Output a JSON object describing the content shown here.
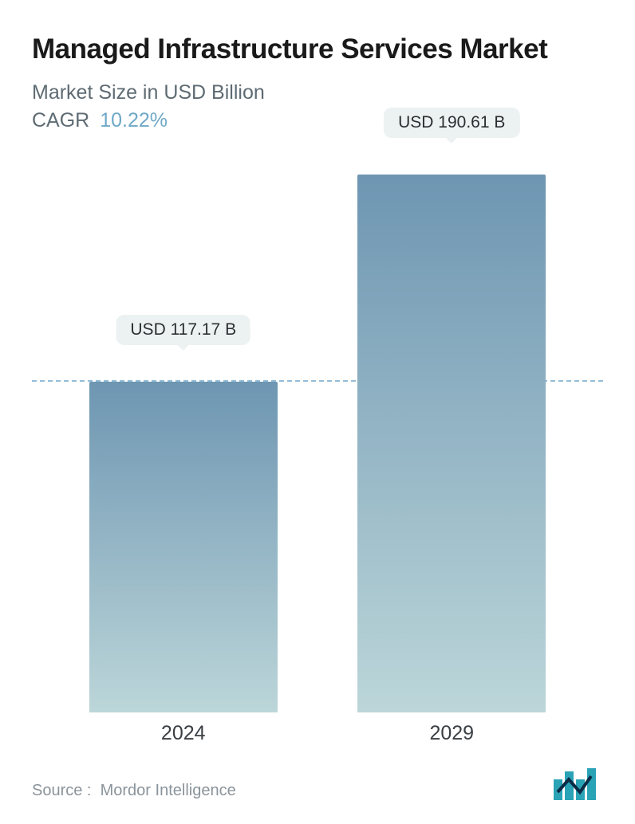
{
  "title": "Managed Infrastructure Services Market",
  "subtitle": "Market Size in USD Billion",
  "cagr_label": "CAGR",
  "cagr_value": "10.22%",
  "source_label": "Source :",
  "source_name": "Mordor Intelligence",
  "chart": {
    "type": "bar",
    "y_max": 200,
    "dashed_reference_value": 117.17,
    "bar_width_pct": 33,
    "bar_gap_pct": 14,
    "bar_left_start_pct": 10,
    "gradient_top": "#6e96b2",
    "gradient_bottom": "#bcd6d9",
    "dashed_color": "#6fa8c7",
    "pill_bg": "#ecf1f2",
    "pill_text_color": "#2b2f33",
    "label_color": "#3a3f44",
    "background": "#ffffff",
    "bars": [
      {
        "category": "2024",
        "value": 117.17,
        "pill": "USD 117.17 B"
      },
      {
        "category": "2029",
        "value": 190.61,
        "pill": "USD 190.61 B"
      }
    ]
  },
  "logo": {
    "name": "mordor-logo",
    "bar_color": "#2aa3b6",
    "accent_color": "#0b2b46"
  }
}
